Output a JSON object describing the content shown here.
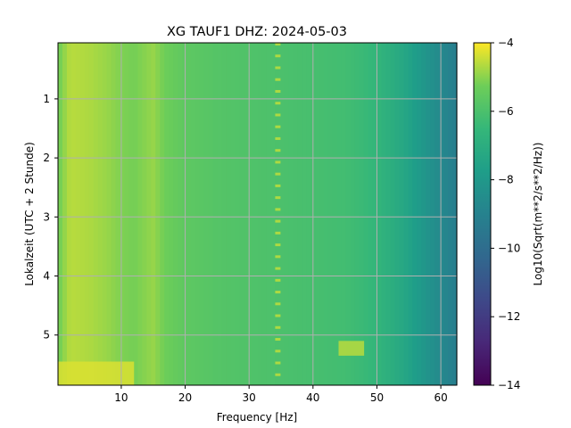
{
  "chart_data": {
    "type": "heatmap",
    "title": "XG TAUF1  DHZ: 2024-05-03",
    "xlabel": "Frequency [Hz]",
    "ylabel": "Lokalzeit (UTC + 2 Stunde)",
    "xlim": [
      0.1,
      62.5
    ],
    "ylim": [
      5.85,
      0.05
    ],
    "x_ticks": [
      10,
      20,
      30,
      40,
      50,
      60
    ],
    "y_ticks": [
      1,
      2,
      3,
      4,
      5
    ],
    "grid": true,
    "colorscale": "viridis",
    "colorbar": {
      "label": "Log10(Sqrt(m**2/s**2/Hz))",
      "range": [
        -14,
        -4
      ],
      "ticks": [
        -4,
        -6,
        -8,
        -10,
        -12,
        -14
      ]
    },
    "spectrum_profile": {
      "x": [
        0.1,
        2,
        5,
        8,
        10,
        12,
        15,
        17,
        20,
        25,
        30,
        35,
        40,
        45,
        48,
        50,
        53,
        55,
        57,
        60,
        62.5
      ],
      "values": [
        -5.3,
        -4.6,
        -4.7,
        -4.9,
        -5.1,
        -5.2,
        -4.9,
        -5.3,
        -5.6,
        -5.8,
        -5.9,
        -6.0,
        -6.1,
        -6.2,
        -6.4,
        -6.6,
        -7.1,
        -7.5,
        -8.0,
        -8.7,
        -9.2
      ]
    },
    "spectral_line": {
      "frequency": 34.5,
      "value": -4.7
    },
    "features": [
      {
        "t": [
          5.45,
          5.85
        ],
        "f": [
          0.1,
          12
        ],
        "value": -4.3
      },
      {
        "t": [
          5.1,
          5.35
        ],
        "f": [
          44,
          48
        ],
        "value": -4.6
      }
    ]
  }
}
